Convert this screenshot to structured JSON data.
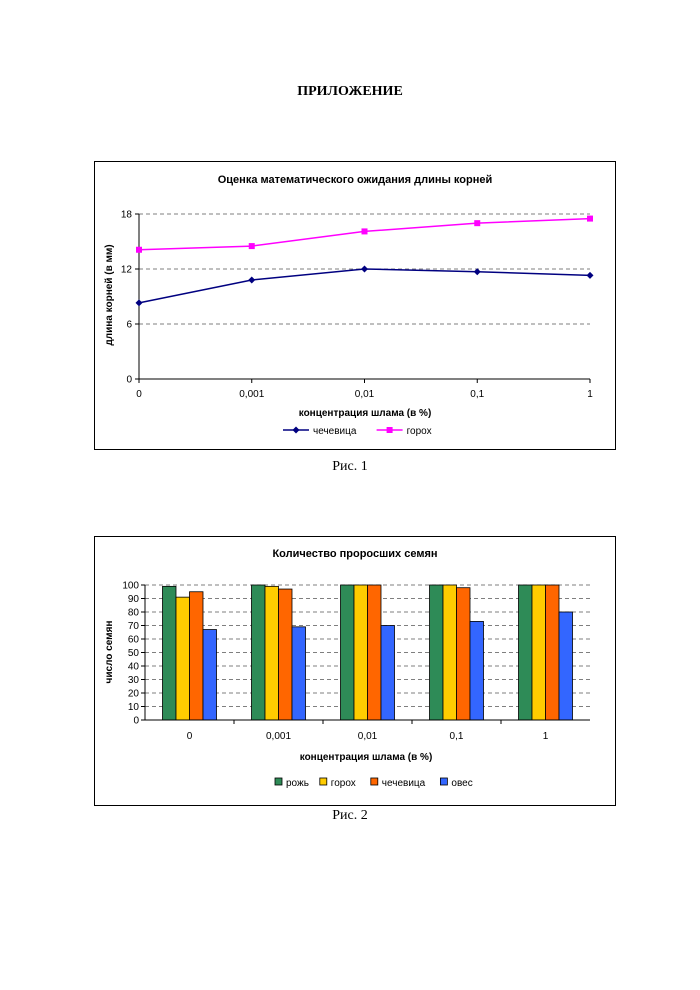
{
  "page": {
    "heading": "ПРИЛОЖЕНИЕ",
    "caption1": "Рис. 1",
    "caption2": "Рис. 2"
  },
  "chart_data": [
    {
      "type": "line",
      "title": "Оценка математического ожидания длины корней",
      "xlabel": "концентрация шлама (в %)",
      "ylabel": "длина корней (в мм)",
      "categories": [
        "0",
        "0,001",
        "0,01",
        "0,1",
        "1"
      ],
      "ylim": [
        0,
        18
      ],
      "yticks": [
        "0",
        "6",
        "12",
        "18"
      ],
      "grid": true,
      "legend": "bottom",
      "series": [
        {
          "name": "чечевица",
          "values": [
            8.3,
            10.8,
            12.0,
            11.7,
            11.3
          ],
          "color": "#000080",
          "marker": "diamond"
        },
        {
          "name": "горох",
          "values": [
            14.1,
            14.5,
            16.1,
            17.0,
            17.5
          ],
          "color": "#ff00ff",
          "marker": "square"
        }
      ]
    },
    {
      "type": "bar",
      "title": "Количество проросших семян",
      "xlabel": "концентрация шлама (в %)",
      "ylabel": "число семян",
      "categories": [
        "0",
        "0,001",
        "0,01",
        "0,1",
        "1"
      ],
      "ylim": [
        0,
        100
      ],
      "yticks": [
        "0",
        "10",
        "20",
        "30",
        "40",
        "50",
        "60",
        "70",
        "80",
        "90",
        "100"
      ],
      "grid": true,
      "legend": "bottom",
      "series": [
        {
          "name": "рожь",
          "values": [
            99,
            100,
            100,
            100,
            100
          ],
          "color": "#2e8b57"
        },
        {
          "name": "горох",
          "values": [
            91,
            99,
            100,
            100,
            100
          ],
          "color": "#ffcc00"
        },
        {
          "name": "чечевица",
          "values": [
            95,
            97,
            100,
            98,
            100
          ],
          "color": "#ff6600"
        },
        {
          "name": "овес",
          "values": [
            67,
            69,
            70,
            73,
            80
          ],
          "color": "#3366ff"
        }
      ]
    }
  ]
}
